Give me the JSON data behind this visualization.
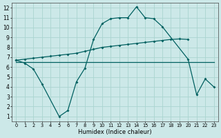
{
  "xlabel": "Humidex (Indice chaleur)",
  "bg_color": "#cce8e8",
  "grid_color": "#aad4d0",
  "line_color": "#006060",
  "ylim": [
    0.5,
    12.5
  ],
  "xlim": [
    -0.5,
    23.5
  ],
  "yticks": [
    1,
    2,
    3,
    4,
    5,
    6,
    7,
    8,
    9,
    10,
    11,
    12
  ],
  "xticks": [
    0,
    1,
    2,
    3,
    4,
    5,
    6,
    7,
    8,
    9,
    10,
    11,
    12,
    13,
    14,
    15,
    16,
    17,
    18,
    19,
    20,
    21,
    22,
    23
  ],
  "line_main_x": [
    0,
    1,
    2,
    3,
    5,
    6,
    7,
    8,
    9,
    10,
    11,
    12,
    13,
    14,
    15,
    16,
    17,
    20,
    21,
    22,
    23
  ],
  "line_main_y": [
    6.7,
    6.4,
    5.8,
    4.3,
    1.0,
    1.6,
    4.5,
    5.9,
    8.8,
    10.4,
    10.9,
    11.0,
    11.0,
    12.1,
    11.0,
    10.9,
    10.1,
    6.8,
    3.2,
    4.8,
    4.0
  ],
  "line_upper_x": [
    0,
    1,
    2,
    3,
    4,
    5,
    6,
    7,
    8,
    9,
    10,
    11,
    12,
    13,
    14,
    15,
    16,
    17,
    18,
    19,
    20
  ],
  "line_upper_y": [
    6.7,
    6.8,
    6.9,
    7.0,
    7.1,
    7.2,
    7.3,
    7.4,
    7.6,
    7.8,
    8.0,
    8.1,
    8.2,
    8.3,
    8.4,
    8.5,
    8.6,
    8.7,
    8.8,
    8.85,
    8.8
  ],
  "line_flat_x": [
    0,
    1,
    2,
    3,
    4,
    5,
    6,
    7,
    8,
    9,
    10,
    11,
    12,
    13,
    14,
    15,
    16,
    17,
    18,
    19,
    20,
    21,
    22,
    23
  ],
  "line_flat_y": [
    6.5,
    6.5,
    6.5,
    6.5,
    6.5,
    6.5,
    6.5,
    6.5,
    6.5,
    6.5,
    6.5,
    6.5,
    6.5,
    6.5,
    6.5,
    6.5,
    6.5,
    6.5,
    6.5,
    6.5,
    6.5,
    6.5,
    6.5,
    6.5
  ]
}
